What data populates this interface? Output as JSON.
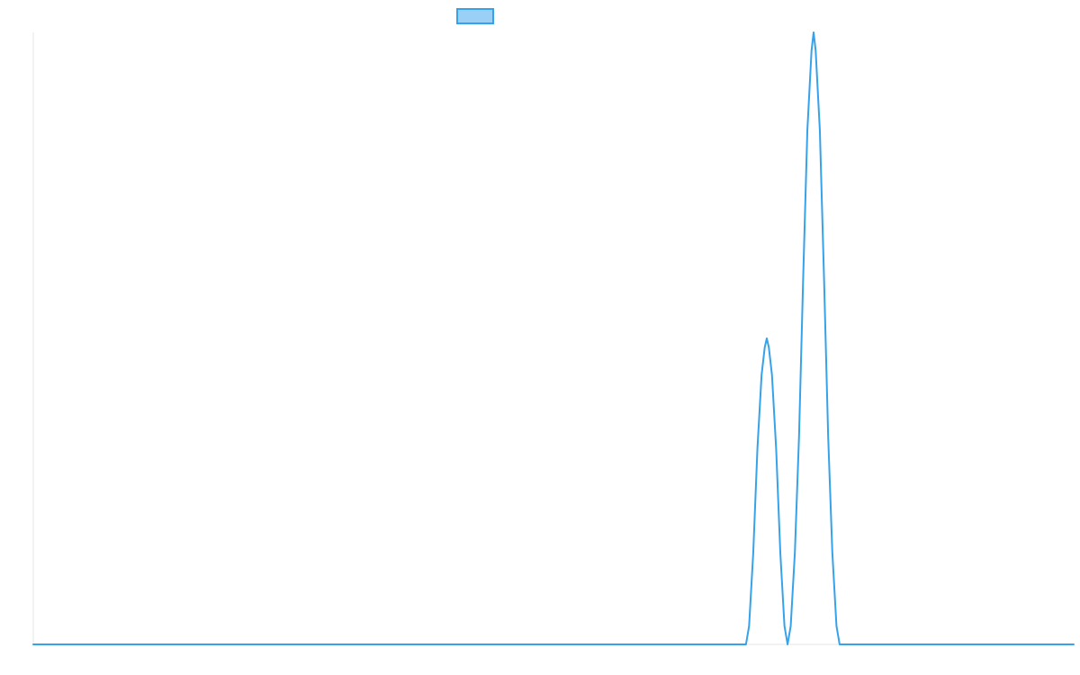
{
  "chart_data": {
    "type": "line",
    "title": "",
    "xlabel": "",
    "ylabel": "",
    "x_range": [
      0,
      1000
    ],
    "ylim": [
      0,
      100
    ],
    "grid": false,
    "legend": "top-center",
    "series": [
      {
        "label": "",
        "color": "#36a2eb",
        "fill_color": "#9ad0f5",
        "points": [
          [
            0,
            0
          ],
          [
            100,
            0
          ],
          [
            200,
            0
          ],
          [
            300,
            0
          ],
          [
            400,
            0
          ],
          [
            500,
            0
          ],
          [
            600,
            0
          ],
          [
            685,
            0
          ],
          [
            688,
            3
          ],
          [
            692,
            15
          ],
          [
            696,
            32
          ],
          [
            700,
            44
          ],
          [
            703,
            48.5
          ],
          [
            705,
            50
          ],
          [
            707,
            48.5
          ],
          [
            710,
            44
          ],
          [
            714,
            32
          ],
          [
            718,
            15
          ],
          [
            722,
            3
          ],
          [
            725,
            0
          ],
          [
            728,
            3
          ],
          [
            732,
            15
          ],
          [
            736,
            34
          ],
          [
            740,
            60
          ],
          [
            744,
            84
          ],
          [
            748,
            97
          ],
          [
            750,
            100
          ],
          [
            752,
            97
          ],
          [
            756,
            84
          ],
          [
            760,
            60
          ],
          [
            764,
            34
          ],
          [
            768,
            15
          ],
          [
            772,
            3
          ],
          [
            775,
            0
          ],
          [
            800,
            0
          ],
          [
            900,
            0
          ],
          [
            1000,
            0
          ]
        ]
      }
    ]
  }
}
